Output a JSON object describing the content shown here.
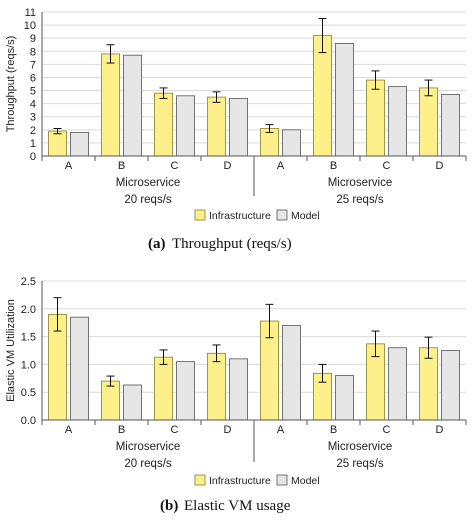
{
  "colors": {
    "infrastructure_fill": "#fdf08a",
    "infrastructure_stroke": "#8a7f2a",
    "model_fill": "#e6e6e6",
    "model_stroke": "#555555",
    "axis": "#555555",
    "grid": "#d9d9d9"
  },
  "legend_labels": [
    "Infrastructure",
    "Model"
  ],
  "chart_data": [
    {
      "type": "bar",
      "ylabel": "Throughput (reqs/s)",
      "ylim": [
        0,
        11
      ],
      "yticks": [
        0,
        1,
        2,
        3,
        4,
        5,
        6,
        7,
        8,
        9,
        10,
        11
      ],
      "grid": true,
      "legend": "bottom",
      "categories": [
        "A",
        "B",
        "C",
        "D",
        "A",
        "B",
        "C",
        "D"
      ],
      "groups": [
        {
          "label": "Microservice",
          "sublabel": "20 reqs/s"
        },
        {
          "label": "Microservice",
          "sublabel": "25 reqs/s"
        }
      ],
      "series": [
        {
          "name": "Infrastructure",
          "values": [
            1.9,
            7.8,
            4.8,
            4.5,
            2.1,
            9.2,
            5.8,
            5.2
          ],
          "error": [
            0.2,
            0.7,
            0.4,
            0.4,
            0.3,
            1.3,
            0.7,
            0.6
          ]
        },
        {
          "name": "Model",
          "values": [
            1.8,
            7.7,
            4.6,
            4.4,
            2.0,
            8.6,
            5.3,
            4.7
          ]
        }
      ],
      "caption_label": "(a)",
      "caption_text": "Throughput (reqs/s)"
    },
    {
      "type": "bar",
      "ylabel": "Elastic VM Utilization",
      "ylim": [
        0,
        2.5
      ],
      "yticks": [
        0.0,
        0.5,
        1.0,
        1.5,
        2.0,
        2.5
      ],
      "ytick_labels": [
        "0.0",
        "0.5",
        "1.0",
        "1.5",
        "2.0",
        "2.5"
      ],
      "grid": true,
      "legend": "bottom",
      "categories": [
        "A",
        "B",
        "C",
        "D",
        "A",
        "B",
        "C",
        "D"
      ],
      "groups": [
        {
          "label": "Microservice",
          "sublabel": "20 reqs/s"
        },
        {
          "label": "Microservice",
          "sublabel": "25 reqs/s"
        }
      ],
      "series": [
        {
          "name": "Infrastructure",
          "values": [
            1.9,
            0.7,
            1.13,
            1.2,
            1.78,
            0.84,
            1.37,
            1.3
          ],
          "error": [
            0.3,
            0.09,
            0.13,
            0.15,
            0.3,
            0.16,
            0.23,
            0.19
          ]
        },
        {
          "name": "Model",
          "values": [
            1.85,
            0.63,
            1.05,
            1.1,
            1.7,
            0.8,
            1.3,
            1.25
          ]
        }
      ],
      "caption_label": "(b)",
      "caption_text": "Elastic VM usage"
    }
  ]
}
